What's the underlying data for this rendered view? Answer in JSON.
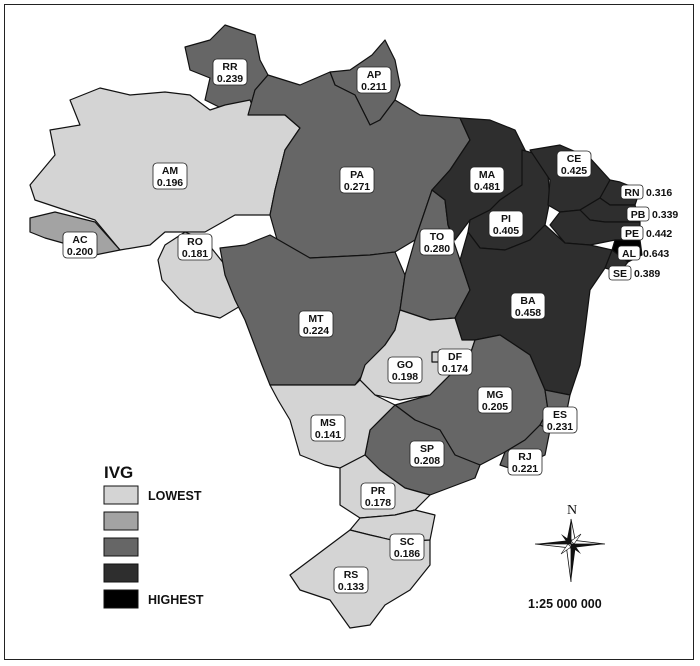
{
  "colors": {
    "class1": "#d4d4d4",
    "class2": "#a3a3a3",
    "class3": "#666666",
    "class4": "#2e2e2e",
    "class5": "#000000"
  },
  "legend": {
    "title": "IVG",
    "items": [
      {
        "label": "LOWEST",
        "class": "class1"
      },
      {
        "label": "",
        "class": "class2"
      },
      {
        "label": "",
        "class": "class3"
      },
      {
        "label": "",
        "class": "class4"
      },
      {
        "label": "HIGHEST",
        "class": "class5"
      }
    ]
  },
  "scale": "1:25 000 000",
  "north_label": "N",
  "states": [
    {
      "code": "RR",
      "value": "0.239",
      "class": "class3"
    },
    {
      "code": "AP",
      "value": "0.211",
      "class": "class3"
    },
    {
      "code": "AM",
      "value": "0.196",
      "class": "class1"
    },
    {
      "code": "AC",
      "value": "0.200",
      "class": "class2"
    },
    {
      "code": "RO",
      "value": "0.181",
      "class": "class1"
    },
    {
      "code": "PA",
      "value": "0.271",
      "class": "class3"
    },
    {
      "code": "MT",
      "value": "0.224",
      "class": "class3"
    },
    {
      "code": "TO",
      "value": "0.280",
      "class": "class3"
    },
    {
      "code": "MA",
      "value": "0.481",
      "class": "class4"
    },
    {
      "code": "PI",
      "value": "0.405",
      "class": "class4"
    },
    {
      "code": "CE",
      "value": "0.425",
      "class": "class4"
    },
    {
      "code": "RN",
      "value": "0.316",
      "class": "class4"
    },
    {
      "code": "PB",
      "value": "0.339",
      "class": "class4"
    },
    {
      "code": "PE",
      "value": "0.442",
      "class": "class4"
    },
    {
      "code": "AL",
      "value": "0.643",
      "class": "class5"
    },
    {
      "code": "SE",
      "value": "0.389",
      "class": "class4"
    },
    {
      "code": "BA",
      "value": "0.458",
      "class": "class4"
    },
    {
      "code": "GO",
      "value": "0.198",
      "class": "class1"
    },
    {
      "code": "DF",
      "value": "0.174",
      "class": "class1"
    },
    {
      "code": "MG",
      "value": "0.205",
      "class": "class3"
    },
    {
      "code": "ES",
      "value": "0.231",
      "class": "class3"
    },
    {
      "code": "RJ",
      "value": "0.221",
      "class": "class3"
    },
    {
      "code": "SP",
      "value": "0.208",
      "class": "class3"
    },
    {
      "code": "MS",
      "value": "0.141",
      "class": "class1"
    },
    {
      "code": "PR",
      "value": "0.178",
      "class": "class1"
    },
    {
      "code": "SC",
      "value": "0.186",
      "class": "class1"
    },
    {
      "code": "RS",
      "value": "0.133",
      "class": "class1"
    }
  ]
}
